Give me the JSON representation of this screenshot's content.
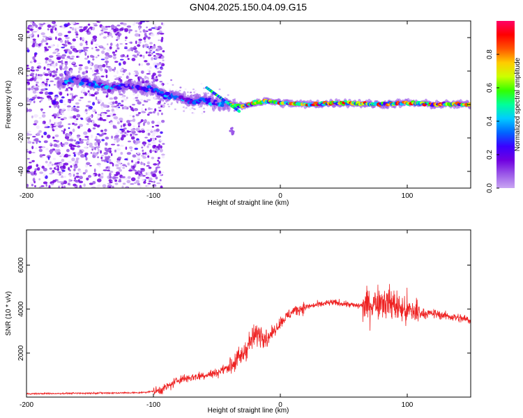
{
  "title": "GN04.2025.150.04.09.G15",
  "colors": {
    "snr_line": "#ee2222",
    "colormap": [
      "#f2e8ff",
      "#c9a6f2",
      "#9b59e8",
      "#7000e0",
      "#3a00ff",
      "#0066ff",
      "#00ccff",
      "#00ff99",
      "#33ff00",
      "#ccff00",
      "#ffcc00",
      "#ff5500",
      "#ff0000",
      "#ff0066"
    ]
  },
  "chart_data": [
    {
      "type": "heatmap",
      "name": "spectrogram",
      "xlabel": "Height of straight line (km)",
      "ylabel": "Frequency (Hz)",
      "xlim": [
        -200,
        150
      ],
      "ylim": [
        -50,
        50
      ],
      "xticks": [
        {
          "value": -200,
          "label": "-200"
        },
        {
          "value": -100,
          "label": "-100"
        },
        {
          "value": 0,
          "label": "0"
        },
        {
          "value": 100,
          "label": "100"
        }
      ],
      "yticks": [
        {
          "value": -40,
          "label": "-40"
        },
        {
          "value": -20,
          "label": "-20"
        },
        {
          "value": 0,
          "label": "0"
        },
        {
          "value": 20,
          "label": "20"
        },
        {
          "value": 40,
          "label": "40"
        }
      ],
      "ridge": {
        "x": [
          -180,
          -165,
          -150,
          -135,
          -120,
          -110,
          -100,
          -90,
          -80,
          -70,
          -60,
          -50,
          -40,
          -30,
          -20,
          -10,
          0,
          20,
          50,
          80,
          100,
          120,
          150
        ],
        "y": [
          10,
          15,
          13,
          10,
          11,
          10,
          9,
          6,
          4,
          2,
          3,
          1,
          0,
          -1,
          1,
          2,
          1,
          0,
          1,
          0,
          1,
          0,
          0
        ]
      },
      "colorbar": {
        "label": "Normalized spectral amplitude",
        "range": [
          0,
          1
        ],
        "ticks": [
          {
            "value": 0.0,
            "label": "0.0"
          },
          {
            "value": 0.2,
            "label": "0.2"
          },
          {
            "value": 0.4,
            "label": "0.4"
          },
          {
            "value": 0.6,
            "label": "0.6"
          },
          {
            "value": 0.8,
            "label": "0.8"
          }
        ]
      }
    },
    {
      "type": "line",
      "name": "snr",
      "xlabel": "Height of straight line (km)",
      "ylabel": "SNR (10 * v/v)",
      "xlim": [
        -200,
        150
      ],
      "ylim": [
        0,
        7600
      ],
      "xticks": [
        {
          "value": -200,
          "label": "-200"
        },
        {
          "value": -100,
          "label": "-100"
        },
        {
          "value": 0,
          "label": "0"
        },
        {
          "value": 100,
          "label": "100"
        }
      ],
      "yticks": [
        {
          "value": 2000,
          "label": "2000"
        },
        {
          "value": 4000,
          "label": "4000"
        },
        {
          "value": 6000,
          "label": "6000"
        }
      ],
      "x": [
        -200,
        -150,
        -110,
        -95,
        -85,
        -80,
        -70,
        -60,
        -50,
        -40,
        -30,
        -25,
        -20,
        -15,
        -10,
        -5,
        0,
        10,
        20,
        30,
        40,
        50,
        60,
        70,
        75,
        80,
        85,
        90,
        95,
        100,
        105,
        110,
        120,
        130,
        140,
        150
      ],
      "y": [
        150,
        180,
        200,
        300,
        600,
        800,
        900,
        1000,
        1100,
        1400,
        1900,
        2400,
        2800,
        2900,
        2700,
        3000,
        3400,
        3900,
        4100,
        4200,
        4300,
        4250,
        4150,
        4200,
        4300,
        4400,
        4300,
        4200,
        4000,
        3900,
        3900,
        3800,
        3800,
        3700,
        3600,
        3500
      ]
    }
  ]
}
